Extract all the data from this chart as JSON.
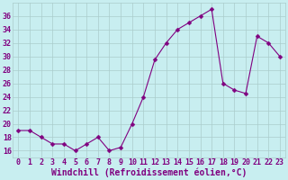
{
  "x": [
    0,
    1,
    2,
    3,
    4,
    5,
    6,
    7,
    8,
    9,
    10,
    11,
    12,
    13,
    14,
    15,
    16,
    17,
    18,
    19,
    20,
    21,
    22,
    23
  ],
  "y": [
    19,
    19,
    18,
    17,
    17,
    16,
    17,
    18,
    16,
    16.5,
    20,
    24,
    29.5,
    32,
    34,
    35,
    36,
    37,
    26,
    25,
    24.5,
    33,
    32,
    30
  ],
  "line_color": "#800080",
  "marker": "D",
  "marker_size": 2.5,
  "bg_color": "#c8eef0",
  "grid_color": "#aacccc",
  "xlabel": "Windchill (Refroidissement éolien,°C)",
  "xlabel_color": "#800080",
  "xlabel_fontsize": 7,
  "tick_color": "#800080",
  "tick_fontsize": 6,
  "ylim": [
    15,
    38
  ],
  "xlim": [
    -0.5,
    23.5
  ],
  "yticks": [
    16,
    18,
    20,
    22,
    24,
    26,
    28,
    30,
    32,
    34,
    36
  ],
  "xticks": [
    0,
    1,
    2,
    3,
    4,
    5,
    6,
    7,
    8,
    9,
    10,
    11,
    12,
    13,
    14,
    15,
    16,
    17,
    18,
    19,
    20,
    21,
    22,
    23
  ]
}
